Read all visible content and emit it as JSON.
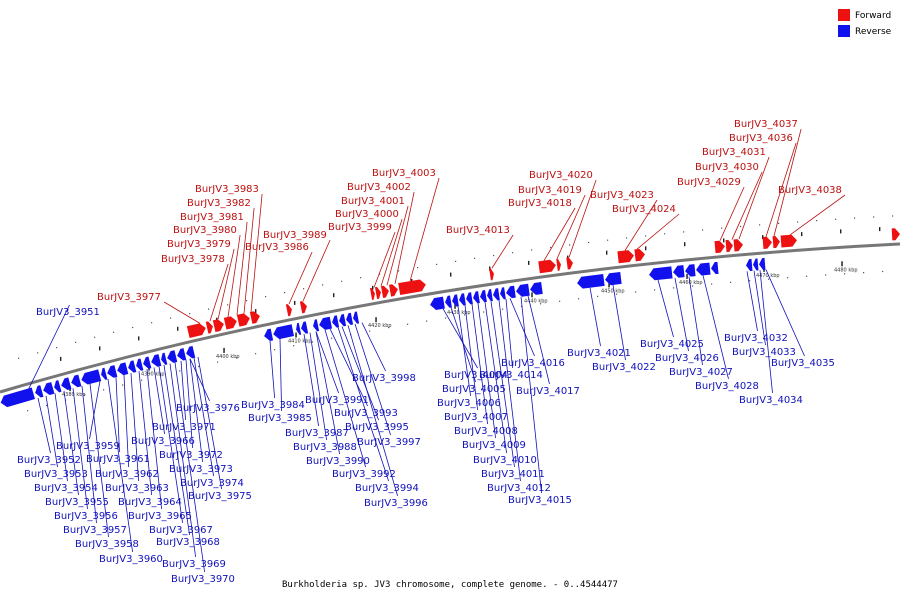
{
  "caption": "Burkholderia sp. JV3 chromosome, complete genome. - 0..4544477",
  "legend": [
    {
      "key": "forward",
      "label": "Forward",
      "color": "#ee1111"
    },
    {
      "key": "reverse",
      "label": "Reverse",
      "color": "#1111ee"
    }
  ],
  "colors": {
    "forward": "#ee1111",
    "reverse": "#1111ee",
    "backbone": "#777777",
    "forward_text": "#bb1111",
    "reverse_text": "#1111bb"
  },
  "scale_ticks": [
    "4380 kbp",
    "4390 kbp",
    "4400 kbp",
    "4410 kbp",
    "4420 kbp",
    "4430 kbp",
    "4440 kbp",
    "4450 kbp",
    "4460 kbp",
    "4470 kbp",
    "4480 kbp"
  ],
  "forward_genes": [
    "BurJV3_3977",
    "BurJV3_3978",
    "BurJV3_3979",
    "BurJV3_3980",
    "BurJV3_3981",
    "BurJV3_3982",
    "BurJV3_3983",
    "BurJV3_3986",
    "BurJV3_3989",
    "BurJV3_3999",
    "BurJV3_4000",
    "BurJV3_4001",
    "BurJV3_4002",
    "BurJV3_4003",
    "BurJV3_4013",
    "BurJV3_4018",
    "BurJV3_4019",
    "BurJV3_4020",
    "BurJV3_4023",
    "BurJV3_4024",
    "BurJV3_4029",
    "BurJV3_4030",
    "BurJV3_4031",
    "BurJV3_4036",
    "BurJV3_4037",
    "BurJV3_4038"
  ],
  "reverse_genes": [
    "BurJV3_3951",
    "BurJV3_3952",
    "BurJV3_3953",
    "BurJV3_3954",
    "BurJV3_3955",
    "BurJV3_3956",
    "BurJV3_3957",
    "BurJV3_3958",
    "BurJV3_3959",
    "BurJV3_3960",
    "BurJV3_3961",
    "BurJV3_3962",
    "BurJV3_3963",
    "BurJV3_3964",
    "BurJV3_3965",
    "BurJV3_3966",
    "BurJV3_3967",
    "BurJV3_3968",
    "BurJV3_3969",
    "BurJV3_3970",
    "BurJV3_3971",
    "BurJV3_3972",
    "BurJV3_3973",
    "BurJV3_3974",
    "BurJV3_3975",
    "BurJV3_3976",
    "BurJV3_3984",
    "BurJV3_3985",
    "BurJV3_3987",
    "BurJV3_3988",
    "BurJV3_3990",
    "BurJV3_3991",
    "BurJV3_3992",
    "BurJV3_3993",
    "BurJV3_3994",
    "BurJV3_3995",
    "BurJV3_3996",
    "BurJV3_3997",
    "BurJV3_3998",
    "BurJV3_4004",
    "BurJV3_4005",
    "BurJV3_4006",
    "BurJV3_4007",
    "BurJV3_4008",
    "BurJV3_4009",
    "BurJV3_4010",
    "BurJV3_4011",
    "BurJV3_4012",
    "BurJV3_4014",
    "BurJV3_4015",
    "BurJV3_4016",
    "BurJV3_4017",
    "BurJV3_4021",
    "BurJV3_4022",
    "BurJV3_4025",
    "BurJV3_4026",
    "BurJV3_4027",
    "BurJV3_4028",
    "BurJV3_4032",
    "BurJV3_4033",
    "BurJV3_4034",
    "BurJV3_4035"
  ]
}
